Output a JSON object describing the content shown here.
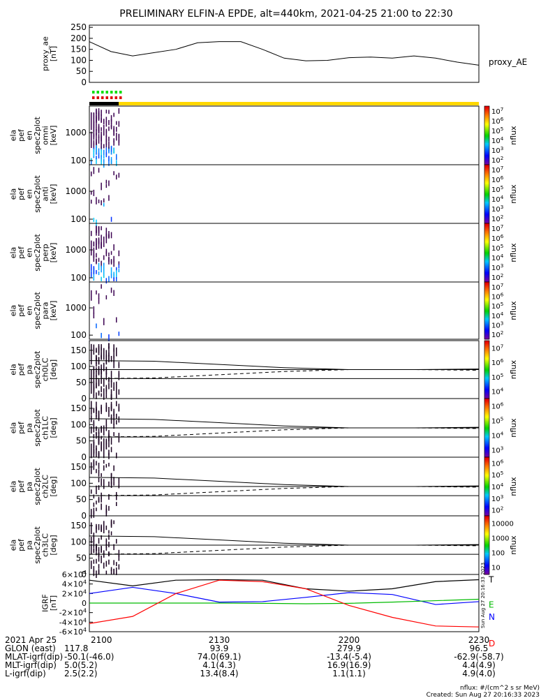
{
  "title": "PRELIMINARY ELFIN-A EPDE, alt=440km, 2021-04-25 21:00 to 22:30",
  "chart_data": [
    {
      "type": "line",
      "panel": "proxy_ae",
      "ylabel": [
        "proxy_ae",
        "[nT]"
      ],
      "legend": "proxy_AE",
      "ylim": [
        0,
        260
      ],
      "yticks": [
        "0",
        "50",
        "100",
        "150",
        "200",
        "250"
      ],
      "x_minutes_after_2100": [
        0,
        5,
        10,
        15,
        20,
        25,
        30,
        35,
        40,
        45,
        50,
        55,
        60,
        65,
        70,
        75,
        80,
        85,
        90
      ],
      "values": [
        185,
        140,
        120,
        135,
        150,
        180,
        185,
        185,
        150,
        110,
        98,
        100,
        112,
        115,
        110,
        120,
        110,
        92,
        78
      ]
    },
    {
      "type": "heatmap",
      "panel": "elx_pef_en_spec2plot_omni",
      "ylabel": [
        "ela",
        "pef",
        "en",
        "spec2plot",
        "omni",
        "[keV]"
      ],
      "yscale": "log",
      "yticks": [
        "100",
        "1000"
      ],
      "colorbar": {
        "label": "nflux",
        "ticks": [
          "10^2",
          "10^3",
          "10^4",
          "10^5",
          "10^6",
          "10^7"
        ]
      }
    },
    {
      "type": "heatmap",
      "panel": "elx_pef_en_spec2plot_anti",
      "ylabel": [
        "ela",
        "pef",
        "en",
        "spec2plot",
        "anti",
        "[keV]"
      ],
      "yscale": "log",
      "yticks": [
        "100",
        "1000"
      ],
      "colorbar": {
        "label": "nflux",
        "ticks": [
          "10^2",
          "10^3",
          "10^4",
          "10^5",
          "10^6",
          "10^7"
        ]
      }
    },
    {
      "type": "heatmap",
      "panel": "elx_pef_en_spec2plot_perp",
      "ylabel": [
        "ela",
        "pef",
        "en",
        "spec2plot",
        "perp",
        "[keV]"
      ],
      "yscale": "log",
      "yticks": [
        "100",
        "1000"
      ],
      "colorbar": {
        "label": "nflux",
        "ticks": [
          "10^2",
          "10^3",
          "10^4",
          "10^5",
          "10^6",
          "10^7"
        ]
      }
    },
    {
      "type": "heatmap",
      "panel": "elx_pef_en_spec2plot_para",
      "ylabel": [
        "ela",
        "pef",
        "en",
        "spec2plot",
        "para",
        "[keV]"
      ],
      "yscale": "log",
      "yticks": [
        "100",
        "1000"
      ],
      "colorbar": {
        "label": "nflux",
        "ticks": [
          "10^2",
          "10^3",
          "10^4",
          "10^5",
          "10^6",
          "10^7"
        ]
      }
    },
    {
      "type": "heatmap",
      "panel": "elx_pef_pa_spec2plot_ch0LC",
      "ylabel": [
        "ela",
        "pef",
        "pa",
        "spec2plot",
        "ch0LC",
        "[deg]"
      ],
      "ylim": [
        0,
        180
      ],
      "yticks": [
        "0",
        "50",
        "100",
        "150"
      ],
      "colorbar": {
        "label": "nflux",
        "ticks": [
          "10^4",
          "10^5",
          "10^6",
          "10^7"
        ]
      }
    },
    {
      "type": "heatmap",
      "panel": "elx_pef_pa_spec2plot_ch1LC",
      "ylabel": [
        "ela",
        "pef",
        "pa",
        "spec2plot",
        "ch1LC",
        "[deg]"
      ],
      "ylim": [
        0,
        180
      ],
      "yticks": [
        "0",
        "50",
        "100",
        "150"
      ],
      "colorbar": {
        "label": "nflux",
        "ticks": [
          "10^3",
          "10^4",
          "10^5",
          "10^6"
        ]
      }
    },
    {
      "type": "heatmap",
      "panel": "elx_pef_pa_spec2plot_ch2LC",
      "ylabel": [
        "ela",
        "pef",
        "pa",
        "spec2plot",
        "ch2LC",
        "[deg]"
      ],
      "ylim": [
        0,
        180
      ],
      "yticks": [
        "0",
        "50",
        "100",
        "150"
      ],
      "colorbar": {
        "label": "nflux",
        "ticks": [
          "10^2",
          "10^3",
          "10^4",
          "10^5",
          "10^6"
        ]
      }
    },
    {
      "type": "heatmap",
      "panel": "elx_pef_pa_spec2plot_ch3LC",
      "ylabel": [
        "ela",
        "pef",
        "pa",
        "spec2plot",
        "ch3LC",
        "[deg]"
      ],
      "ylim": [
        0,
        180
      ],
      "yticks": [
        "0",
        "50",
        "100",
        "150"
      ],
      "colorbar": {
        "label": "nflux",
        "ticks": [
          "10",
          "100",
          "1000",
          "10000"
        ]
      }
    },
    {
      "type": "line",
      "panel": "IGRF",
      "ylabel": [
        "IGRF",
        "[nT]"
      ],
      "ylim": [
        -60000,
        60000
      ],
      "yticks": [
        "6×10^4",
        "4×10^4",
        "2×10^4",
        "0",
        "-2×10^4",
        "-4×10^4",
        "-6×10^4"
      ],
      "x_minutes_after_2100": [
        0,
        10,
        20,
        30,
        40,
        50,
        60,
        70,
        80,
        90
      ],
      "series": [
        {
          "name": "T",
          "color": "#000000",
          "values": [
            48000,
            36000,
            48000,
            49000,
            48000,
            30000,
            25000,
            30000,
            45000,
            49000
          ]
        },
        {
          "name": "N",
          "color": "#0000ff",
          "values": [
            20000,
            33000,
            20000,
            2000,
            3000,
            12000,
            22000,
            18000,
            -3000,
            3000
          ]
        },
        {
          "name": "E",
          "color": "#00bb00",
          "values": [
            0,
            0,
            0,
            0,
            -500,
            -1500,
            -500,
            2000,
            5000,
            8000
          ]
        },
        {
          "name": "D",
          "color": "#ff0000",
          "values": [
            -43000,
            -28000,
            20000,
            48000,
            45000,
            30000,
            -5000,
            -30000,
            -48000,
            -50000
          ]
        }
      ]
    }
  ],
  "colorbar_label": "nflux",
  "side_label": "Sun Aug 27 20:16:33 2023",
  "xaxis": {
    "ticks": [
      "2100",
      "2130",
      "2200",
      "2230"
    ],
    "rows": [
      {
        "label": "2021 Apr 25",
        "vals": [
          "2100",
          "2130",
          "2200",
          "2230"
        ]
      },
      {
        "label": "GLON (east)",
        "vals": [
          "117.8",
          "93.9",
          "279.9",
          "96.5"
        ]
      },
      {
        "label": "MLAT-igrf(dip)",
        "vals": [
          "-50.1(-46.0)",
          "74.0(69.1)",
          "-13.4(-5.4)",
          "-62.9(-58.7)"
        ]
      },
      {
        "label": "MLT-igrf(dip)",
        "vals": [
          "5.0(5.2)",
          "4.1(4.3)",
          "16.9(16.9)",
          "4.4(4.9)"
        ]
      },
      {
        "label": "L-igrf(dip)",
        "vals": [
          "2.5(2.2)",
          "13.4(8.4)",
          "1.1(1.1)",
          "4.9(4.0)"
        ]
      }
    ]
  },
  "footer": {
    "units": "nflux: #/(cm^2 s sr MeV)",
    "created": "Created: Sun Aug 27 20:16:33 2023"
  },
  "colors": {
    "yellow_bar": "#ffd700",
    "axis": "#000000"
  }
}
